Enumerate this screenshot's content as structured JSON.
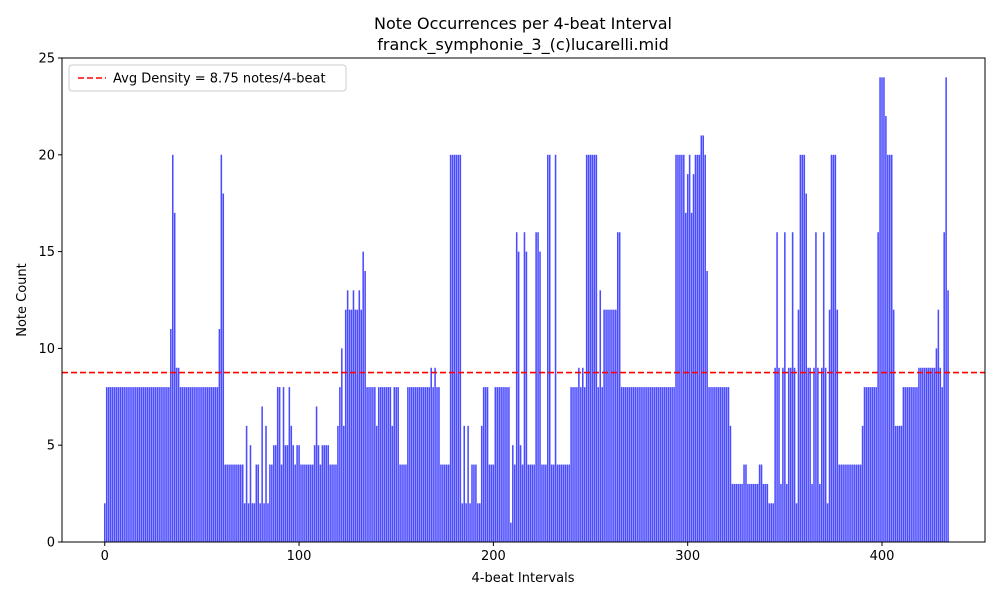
{
  "chart_data": {
    "type": "bar",
    "title": "Note Occurrences per 4-beat Interval",
    "subtitle": "franck_symphonie_3_(c)lucarelli.mid",
    "xlabel": "4-beat Intervals",
    "ylabel": "Note Count",
    "xlim": [
      -22,
      453
    ],
    "ylim": [
      0,
      25
    ],
    "xticks": [
      0,
      100,
      200,
      300,
      400
    ],
    "yticks": [
      0,
      5,
      10,
      15,
      20,
      25
    ],
    "bar_color": "#0000ff",
    "bar_opacity": 0.7,
    "grid": false,
    "legend_position": "top-left",
    "reference_line": {
      "value": 8.75,
      "label": "Avg Density = 8.75 notes/4-beat",
      "color": "#ff0000",
      "style": "dashed"
    },
    "x_start": 0,
    "values": [
      2,
      8,
      8,
      8,
      8,
      8,
      8,
      8,
      8,
      8,
      8,
      8,
      8,
      8,
      8,
      8,
      8,
      8,
      8,
      8,
      8,
      8,
      8,
      8,
      8,
      8,
      8,
      8,
      8,
      8,
      8,
      8,
      8,
      8,
      11,
      20,
      17,
      9,
      9,
      8,
      8,
      8,
      8,
      8,
      8,
      8,
      8,
      8,
      8,
      8,
      8,
      8,
      8,
      8,
      8,
      8,
      8,
      8,
      8,
      11,
      20,
      18,
      4,
      4,
      4,
      4,
      4,
      4,
      4,
      4,
      4,
      4,
      2,
      6,
      2,
      5,
      2,
      2,
      4,
      4,
      2,
      7,
      2,
      6,
      2,
      4,
      4,
      5,
      5,
      8,
      8,
      4,
      8,
      5,
      5,
      8,
      6,
      5,
      4,
      5,
      5,
      4,
      4,
      4,
      4,
      4,
      4,
      4,
      5,
      7,
      5,
      4,
      5,
      5,
      5,
      5,
      4,
      4,
      4,
      4,
      6,
      8,
      10,
      6,
      12,
      13,
      12,
      12,
      13,
      12,
      12,
      13,
      12,
      15,
      14,
      8,
      8,
      8,
      8,
      8,
      6,
      8,
      8,
      8,
      8,
      8,
      8,
      8,
      6,
      8,
      8,
      8,
      4,
      4,
      4,
      4,
      8,
      8,
      8,
      8,
      8,
      8,
      8,
      8,
      8,
      8,
      8,
      8,
      9,
      8,
      9,
      8,
      8,
      4,
      4,
      4,
      4,
      4,
      20,
      20,
      20,
      20,
      20,
      20,
      2,
      6,
      2,
      6,
      2,
      4,
      4,
      4,
      2,
      2,
      6,
      8,
      8,
      8,
      4,
      4,
      4,
      8,
      8,
      8,
      8,
      8,
      8,
      8,
      8,
      1,
      5,
      4,
      16,
      15,
      5,
      4,
      16,
      15,
      4,
      4,
      4,
      4,
      16,
      16,
      15,
      4,
      4,
      4,
      20,
      20,
      4,
      4,
      20,
      4,
      4,
      4,
      4,
      4,
      4,
      4,
      8,
      8,
      8,
      8,
      9,
      8,
      9,
      8,
      20,
      20,
      20,
      20,
      20,
      20,
      8,
      13,
      8,
      12,
      12,
      12,
      12,
      12,
      12,
      12,
      16,
      16,
      8,
      8,
      8,
      8,
      8,
      8,
      8,
      8,
      8,
      8,
      8,
      8,
      8,
      8,
      8,
      8,
      8,
      8,
      8,
      8,
      8,
      8,
      8,
      8,
      8,
      8,
      8,
      8,
      20,
      20,
      20,
      20,
      20,
      17,
      19,
      20,
      17,
      19,
      20,
      20,
      20,
      21,
      21,
      20,
      14,
      8,
      8,
      8,
      8,
      8,
      8,
      8,
      8,
      8,
      8,
      8,
      6,
      3,
      3,
      3,
      3,
      3,
      3,
      4,
      4,
      3,
      3,
      3,
      3,
      3,
      3,
      4,
      4,
      3,
      3,
      3,
      2,
      2,
      2,
      9,
      16,
      9,
      3,
      9,
      16,
      3,
      9,
      9,
      16,
      9,
      2,
      12,
      20,
      20,
      20,
      18,
      9,
      9,
      3,
      9,
      16,
      9,
      3,
      9,
      16,
      9,
      2,
      12,
      20,
      20,
      20,
      12,
      4,
      4,
      4,
      4,
      4,
      4,
      4,
      4,
      4,
      4,
      4,
      4,
      6,
      8,
      8,
      8,
      8,
      8,
      8,
      8,
      16,
      24,
      24,
      24,
      22,
      20,
      20,
      20,
      12,
      6,
      6,
      6,
      6,
      8,
      8,
      8,
      8,
      8,
      8,
      8,
      8,
      9,
      9,
      9,
      9,
      9,
      9,
      9,
      9,
      9,
      10,
      12,
      9,
      8,
      16,
      24,
      13
    ]
  }
}
